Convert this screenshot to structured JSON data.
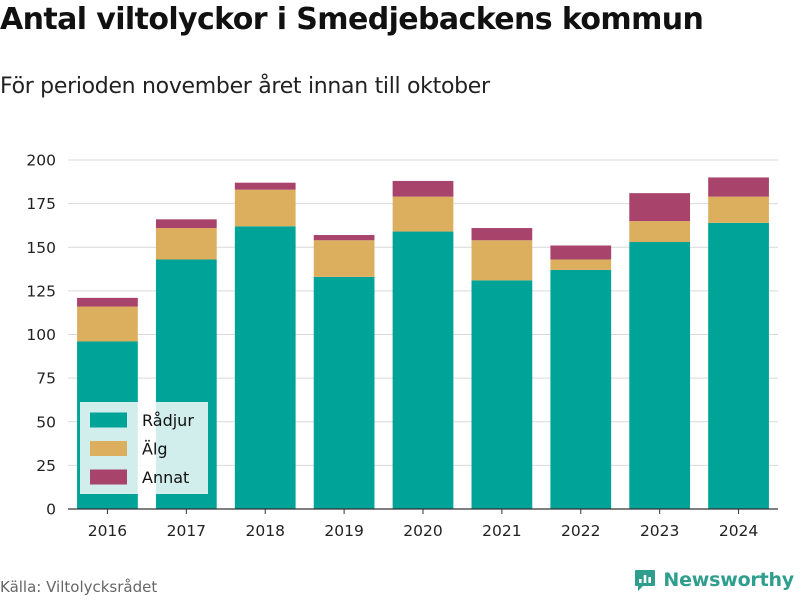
{
  "title": "Antal viltolyckor i Smedjebackens kommun",
  "subtitle": "För perioden november året innan till oktober",
  "source": "Källa: Viltolycksrådet",
  "brand": {
    "name": "Newsworthy",
    "icon": "newsworthy-logo-icon",
    "color": "#2f9e8f"
  },
  "chart_data": {
    "type": "bar",
    "stacked": true,
    "categories": [
      "2016",
      "2017",
      "2018",
      "2019",
      "2020",
      "2021",
      "2022",
      "2023",
      "2024"
    ],
    "series": [
      {
        "name": "Rådjur",
        "color": "#00a398",
        "values": [
          96,
          143,
          162,
          133,
          159,
          131,
          137,
          153,
          164
        ]
      },
      {
        "name": "Älg",
        "color": "#dcaf5f",
        "values": [
          20,
          18,
          21,
          21,
          20,
          23,
          6,
          12,
          15
        ]
      },
      {
        "name": "Annat",
        "color": "#a8436b",
        "values": [
          5,
          5,
          4,
          3,
          9,
          7,
          8,
          16,
          11
        ]
      }
    ],
    "ylim": [
      0,
      200
    ],
    "yticks": [
      0,
      25,
      50,
      75,
      100,
      125,
      150,
      175,
      200
    ],
    "xlabel": "",
    "ylabel": "",
    "grid": true,
    "legend_position": "bottom-left"
  }
}
